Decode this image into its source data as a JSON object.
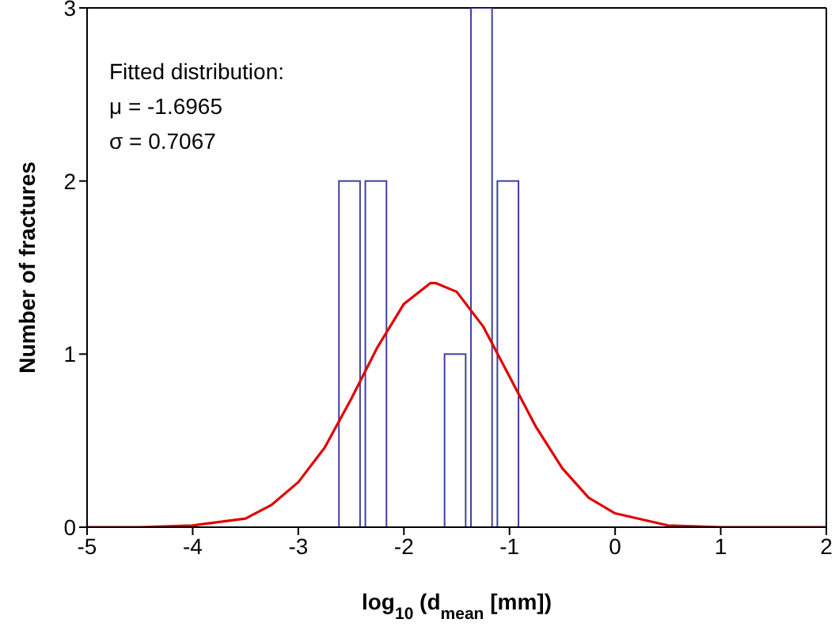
{
  "chart_data": {
    "type": "histogram",
    "xlabel": "log$_{10}$ (d$_{mean}$ [mm])",
    "ylabel": "Number of fractures",
    "annotations": [
      "Fitted distribution:",
      "μ = -1.6965",
      "σ = 0.7067"
    ],
    "series": [
      {
        "color": "#4040a0",
        "bins": [
          -2.64,
          -2.39,
          -2.14,
          -1.89,
          -1.64,
          -1.39,
          -1.14,
          -0.89
        ],
        "values": [
          2,
          2,
          0,
          0,
          1,
          3,
          2
        ]
      },
      {
        "type": "line",
        "color": "#e00000",
        "x": [
          -5,
          -4.5,
          -4,
          -3.5,
          -3.25,
          -3,
          -2.75,
          -2.5,
          -2.25,
          -2,
          -1.75,
          -1.6965,
          -1.5,
          -1.25,
          -1,
          -0.75,
          -0.5,
          -0.25,
          0,
          0.5,
          1,
          2
        ],
        "values": [
          0,
          0,
          0.01,
          0.05,
          0.13,
          0.26,
          0.46,
          0.74,
          1.04,
          1.29,
          1.41,
          1.41,
          1.36,
          1.16,
          0.87,
          0.58,
          0.34,
          0.17,
          0.08,
          0.01,
          0,
          0
        ]
      }
    ],
    "xlim": [
      -5,
      2
    ],
    "xticks": [
      -5,
      -4,
      -3,
      -2,
      -1,
      0,
      1,
      2
    ],
    "ylim": [
      0,
      3
    ],
    "yticks": [
      0,
      1,
      2,
      3
    ],
    "grid": false,
    "legend": false,
    "marker": "none",
    "line_style": "solid"
  }
}
